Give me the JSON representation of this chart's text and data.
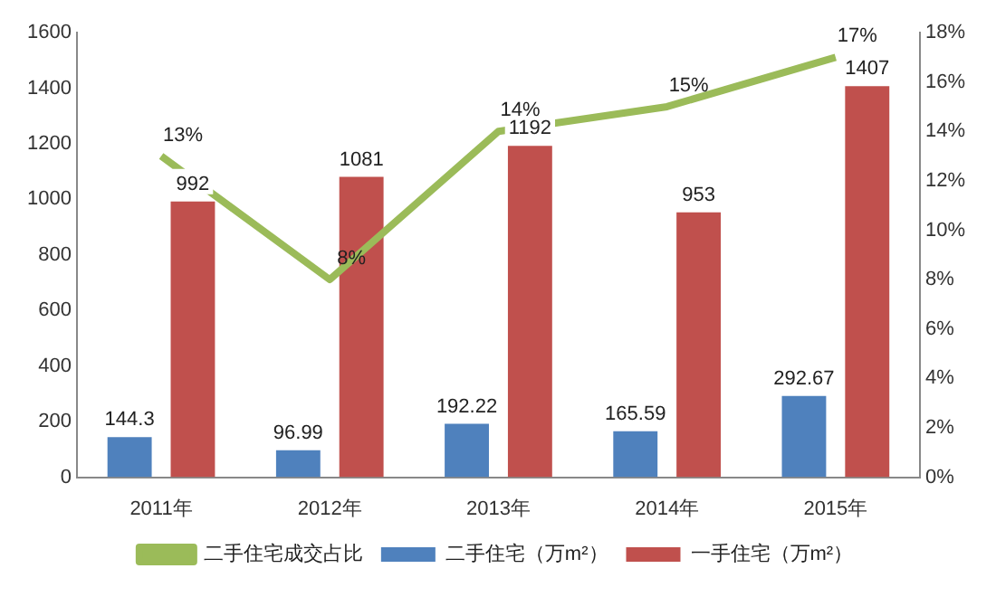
{
  "chart_data": {
    "type": "bar",
    "categories": [
      "2011年",
      "2012年",
      "2013年",
      "2014年",
      "2015年"
    ],
    "series": [
      {
        "name": "二手住宅（万m²）",
        "color": "#4f81bd",
        "values": [
          144.3,
          96.99,
          192.22,
          165.59,
          292.67
        ]
      },
      {
        "name": "一手住宅（万m²）",
        "color": "#c0504d",
        "values": [
          992,
          1081,
          1192,
          953,
          1407
        ]
      },
      {
        "name": "二手住宅成交占比",
        "type": "line",
        "axis": "y2",
        "color": "#9bbb59",
        "values": [
          13,
          8,
          14,
          15,
          17
        ],
        "value_labels": [
          "13%",
          "8%",
          "14%",
          "15%",
          "17%"
        ]
      }
    ],
    "ylim": [
      0,
      1600
    ],
    "yticks": [
      0,
      200,
      400,
      600,
      800,
      1000,
      1200,
      1400,
      1600
    ],
    "y2lim": [
      0,
      18
    ],
    "y2ticks": [
      {
        "value": 0,
        "label": "0%"
      },
      {
        "value": 2,
        "label": "2%"
      },
      {
        "value": 4,
        "label": "4%"
      },
      {
        "value": 6,
        "label": "6%"
      },
      {
        "value": 8,
        "label": "8%"
      },
      {
        "value": 10,
        "label": "10%"
      },
      {
        "value": 12,
        "label": "12%"
      },
      {
        "value": 14,
        "label": "14%"
      },
      {
        "value": 16,
        "label": "16%"
      },
      {
        "value": 18,
        "label": "18%"
      }
    ],
    "data_labels": true,
    "legend": "bottom",
    "grid": false,
    "marker": "none"
  }
}
